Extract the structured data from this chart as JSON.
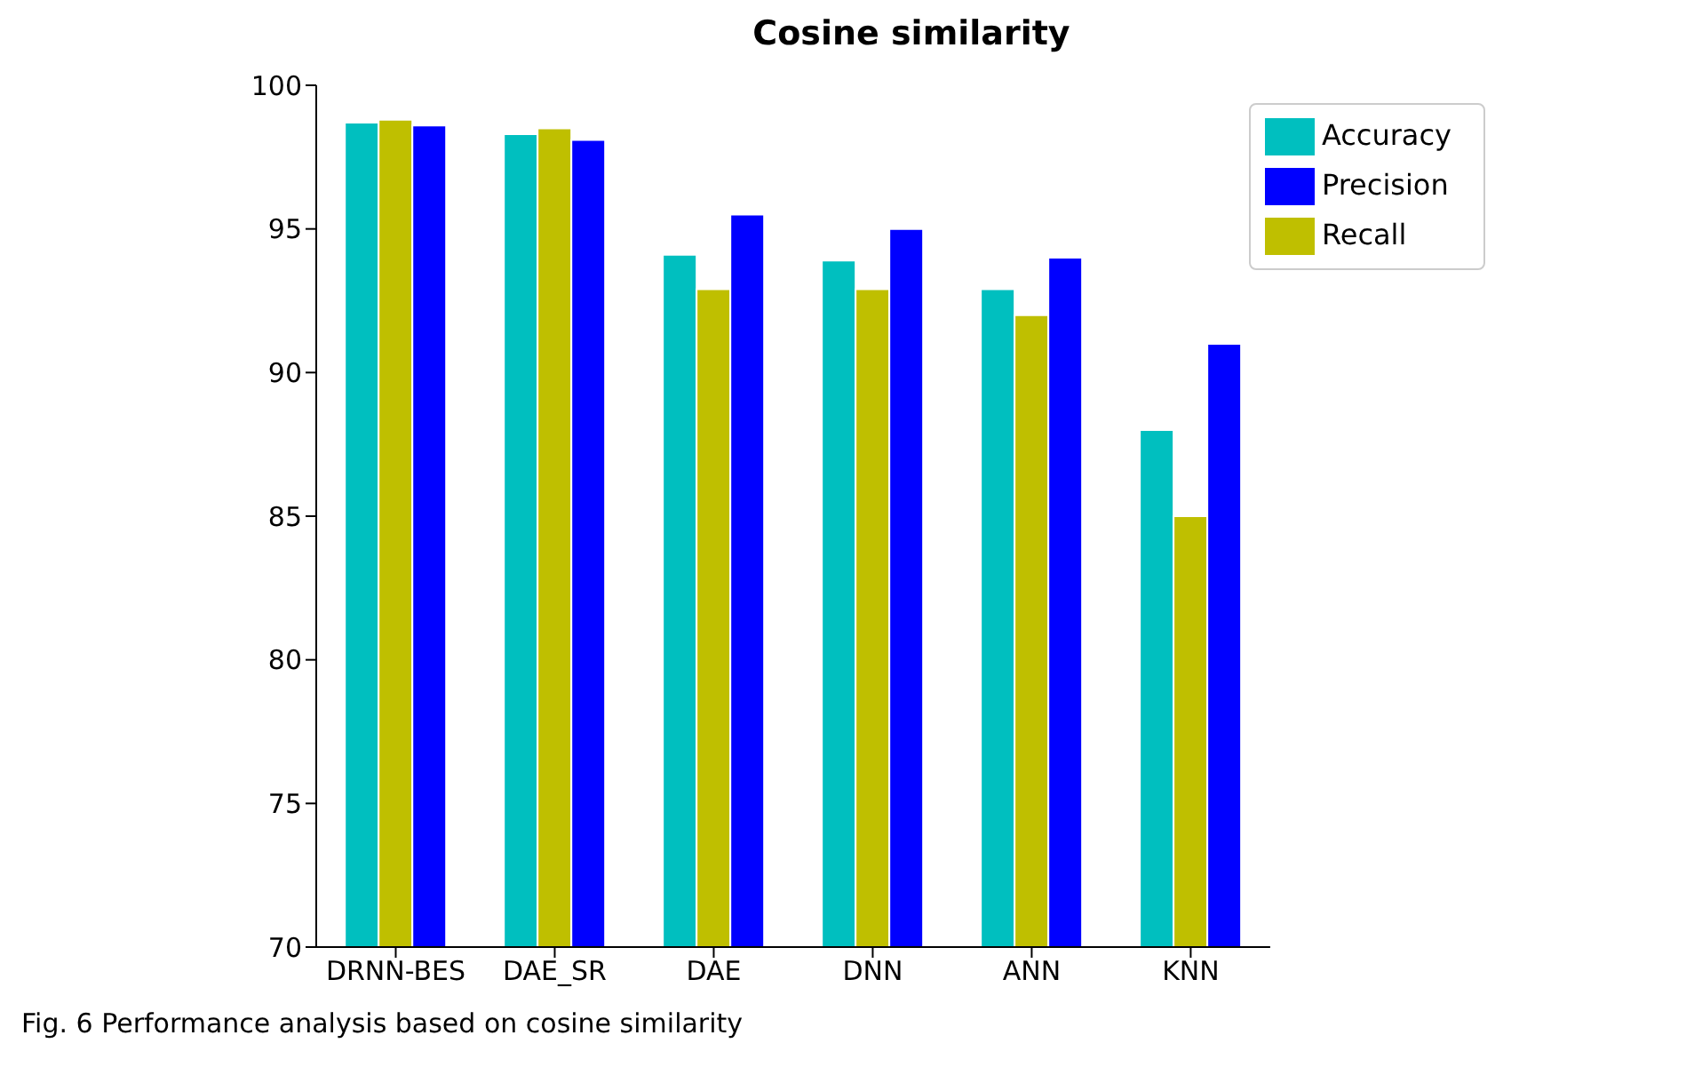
{
  "chart_data": {
    "type": "bar",
    "title": "Cosine similarity",
    "categories": [
      "DRNN-BES",
      "DAE_SR",
      "DAE",
      "DNN",
      "ANN",
      "KNN"
    ],
    "series": [
      {
        "name": "Accuracy",
        "color": "#00bfbf",
        "values": [
          98.7,
          98.3,
          94.1,
          93.9,
          92.9,
          88.0
        ]
      },
      {
        "name": "Recall",
        "color": "#bfbf00",
        "values": [
          98.8,
          98.5,
          92.9,
          92.9,
          92.0,
          85.0
        ]
      },
      {
        "name": "Precision",
        "color": "#0000ff",
        "values": [
          98.6,
          98.1,
          95.5,
          95.0,
          94.0,
          91.0
        ]
      }
    ],
    "ylim": [
      70,
      100
    ],
    "yticks": [
      70,
      75,
      80,
      85,
      90,
      95,
      100
    ],
    "grid": false,
    "legend": "top right",
    "annotations": [
      "Fig. 6 Performance analysis based on cosine similarity"
    ]
  }
}
